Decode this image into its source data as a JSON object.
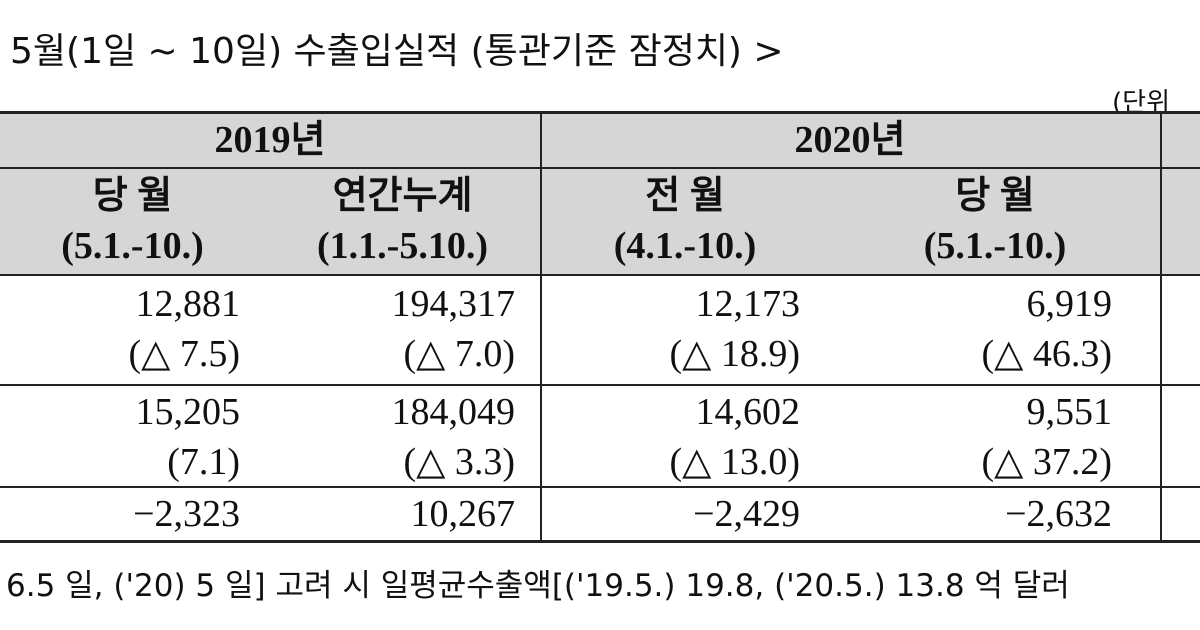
{
  "title": "5월(1일 ~ 10일)  수출입실적 (통관기준  잠정치) >",
  "unit": "(단위",
  "table": {
    "year_headers": [
      "2019년",
      "2020년"
    ],
    "column_headers": [
      {
        "name": "당 월",
        "period": "(5.1.-10.)"
      },
      {
        "name": "연간누계",
        "period": "(1.1.-5.10.)"
      },
      {
        "name": "전 월",
        "period": "(4.1.-10.)"
      },
      {
        "name": "당 월",
        "period": "(5.1.-10.)"
      }
    ],
    "rows": [
      {
        "values": [
          "12,881",
          "194,317",
          "12,173",
          "6,919"
        ],
        "changes": [
          "(△ 7.5)",
          "(△ 7.0)",
          "(△ 18.9)",
          "(△ 46.3)"
        ]
      },
      {
        "values": [
          "15,205",
          "184,049",
          "14,602",
          "9,551"
        ],
        "changes": [
          "(7.1)",
          "(△ 3.3)",
          "(△ 13.0)",
          "(△ 37.2)"
        ]
      },
      {
        "values": [
          "−2,323",
          "10,267",
          "−2,429",
          "−2,632"
        ]
      }
    ]
  },
  "footnote": "6.5 일, ('20) 5 일] 고려 시 일평균수출액[('19.5.) 19.8, ('20.5.) 13.8 억 달러"
}
